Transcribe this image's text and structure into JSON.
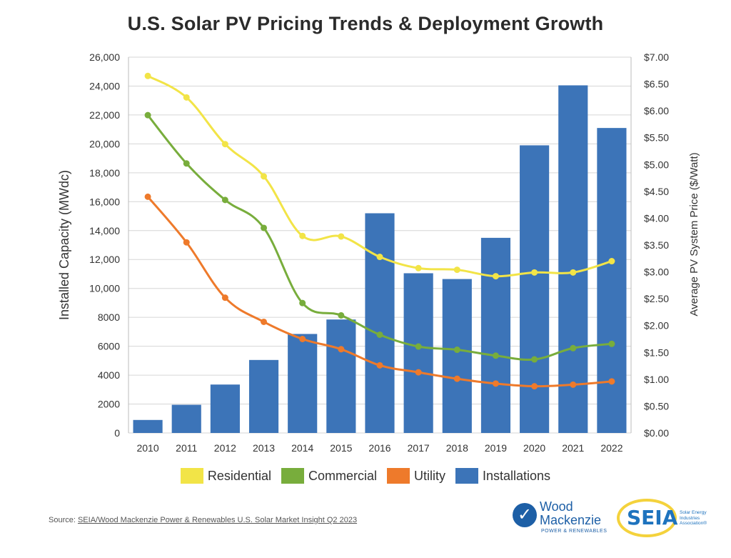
{
  "title": "U.S. Solar PV Pricing Trends & Deployment Growth",
  "legend": {
    "residential": "Residential",
    "commercial": "Commercial",
    "utility": "Utility",
    "installations": "Installations"
  },
  "colors": {
    "residential": "#f2e447",
    "commercial": "#78ad3c",
    "utility": "#ee7a2b",
    "installations": "#3c74b8",
    "grid": "#d6d6d6"
  },
  "source": {
    "prefix": "Source: ",
    "link": "SEIA/Wood Mackenzie Power & Renewables U.S. Solar Market Insight Q2 2023"
  },
  "logos": {
    "wood_mackenzie": "Wood\nMackenzie",
    "wood_mackenzie_sub": "POWER & RENEWABLES",
    "seia": "SEIA",
    "seia_tag": "Solar Energy Industries Association®"
  },
  "chart_data": {
    "type": "bar",
    "title": "U.S. Solar PV Pricing Trends & Deployment Growth",
    "categories": [
      "2010",
      "2011",
      "2012",
      "2013",
      "2014",
      "2015",
      "2016",
      "2017",
      "2018",
      "2019",
      "2020",
      "2021",
      "2022"
    ],
    "ylabel": "Installed Capacity (MWdc)",
    "y2label": "Average PV System Price ($/Watt)",
    "ylim": [
      0,
      26000
    ],
    "y2lim": [
      0,
      7
    ],
    "yticks": [
      "0",
      "2000",
      "4000",
      "6000",
      "8000",
      "10,000",
      "12,000",
      "14,000",
      "16,000",
      "18,000",
      "20,000",
      "22,000",
      "24,000",
      "26,000"
    ],
    "y2ticks": [
      "$0.00",
      "$0.50",
      "$1.00",
      "$1.50",
      "$2.00",
      "$2.50",
      "$3.00",
      "$3.50",
      "$4.00",
      "$4.50",
      "$5.00",
      "$5.50",
      "$6.00",
      "$6.50",
      "$7.00"
    ],
    "grid": true,
    "legend_position": "bottom",
    "bars": {
      "name": "Installations",
      "axis": "left",
      "values": [
        900,
        1950,
        3350,
        5050,
        6850,
        7850,
        15200,
        11050,
        10650,
        13500,
        19900,
        24050,
        21100
      ]
    },
    "series": [
      {
        "name": "Residential",
        "type": "line",
        "axis": "right",
        "values": [
          6.65,
          6.25,
          5.38,
          4.78,
          3.67,
          3.66,
          3.28,
          3.07,
          3.04,
          2.92,
          2.99,
          2.99,
          3.2
        ]
      },
      {
        "name": "Commercial",
        "type": "line",
        "axis": "right",
        "values": [
          5.92,
          5.02,
          4.34,
          3.82,
          2.42,
          2.19,
          1.83,
          1.61,
          1.55,
          1.44,
          1.37,
          1.58,
          1.66
        ]
      },
      {
        "name": "Utility",
        "type": "line",
        "axis": "right",
        "values": [
          4.4,
          3.55,
          2.52,
          2.07,
          1.75,
          1.56,
          1.26,
          1.13,
          1.01,
          0.92,
          0.87,
          0.9,
          0.96
        ]
      }
    ]
  }
}
